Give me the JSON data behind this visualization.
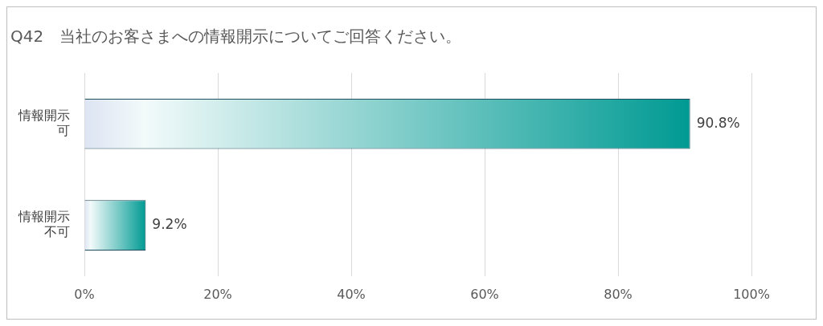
{
  "chart_data": {
    "type": "bar",
    "orientation": "horizontal",
    "title": "Q42　当社のお客さまへの情報開示についてご回答ください。",
    "categories": [
      "情報開示可",
      "情報開示不可"
    ],
    "values": [
      90.8,
      9.2
    ],
    "color": "#009a93",
    "value_labels": [
      "90.8%",
      "9.2%"
    ],
    "xlim": [
      0,
      100
    ],
    "xticks": [
      {
        "value": 0,
        "label": "0%"
      },
      {
        "value": 20,
        "label": "20%"
      },
      {
        "value": 40,
        "label": "40%"
      },
      {
        "value": 60,
        "label": "60%"
      },
      {
        "value": 80,
        "label": "80%"
      },
      {
        "value": 100,
        "label": "100%"
      }
    ],
    "grid": "x",
    "legend": false
  }
}
